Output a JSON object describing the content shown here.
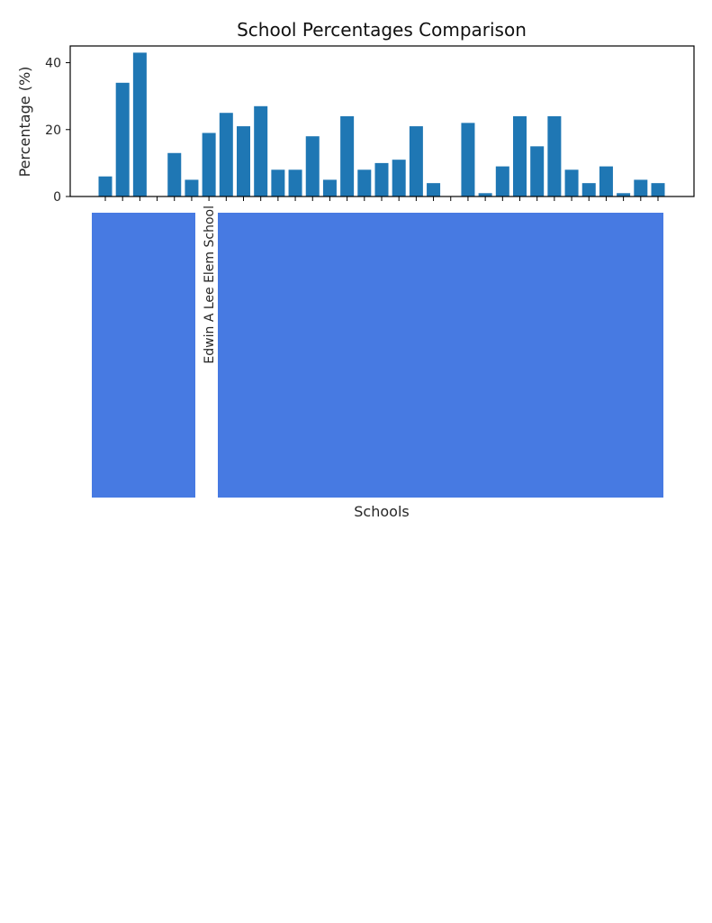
{
  "colors": {
    "bar": "#1f77b4",
    "redaction": "#477ae2",
    "axis": "#000000",
    "background": "#ffffff"
  },
  "chart_data": {
    "type": "bar",
    "title": "School Percentages Comparison",
    "xlabel": "Schools",
    "ylabel": "Percentage (%)",
    "ylim": [
      0,
      45
    ],
    "yticks": [
      0,
      20,
      40
    ],
    "grid": false,
    "categories": [
      "",
      "",
      "",
      "",
      "",
      "",
      "Edwin A Lee Elem School",
      "",
      "",
      "",
      "",
      "",
      "",
      "",
      "",
      "",
      "",
      "",
      "",
      "",
      "",
      "",
      "",
      "",
      "",
      "",
      "",
      "",
      "",
      "",
      "",
      "",
      ""
    ],
    "values": [
      6,
      34,
      43,
      0,
      13,
      5,
      19,
      25,
      21,
      27,
      8,
      8,
      18,
      5,
      24,
      8,
      10,
      11,
      21,
      4,
      0,
      22,
      1,
      9,
      24,
      15,
      24,
      8,
      4,
      9,
      1,
      5,
      4
    ]
  }
}
